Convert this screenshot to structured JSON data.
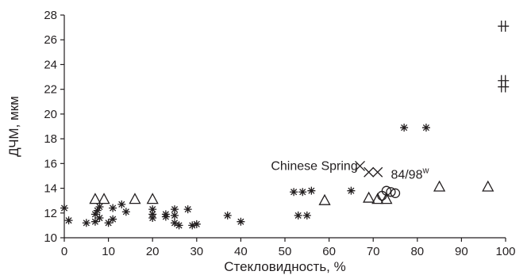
{
  "chart_data": {
    "type": "scatter",
    "xlabel": "Стекловидность, %",
    "ylabel": "ДЧМ, мкм",
    "xlim": [
      0,
      100
    ],
    "ylim": [
      10,
      28
    ],
    "xticks": [
      "0",
      "10",
      "20",
      "30",
      "40",
      "50",
      "60",
      "70",
      "80",
      "90",
      "100"
    ],
    "yticks": [
      "10",
      "12",
      "14",
      "16",
      "18",
      "20",
      "22",
      "24",
      "26",
      "28"
    ],
    "grid": false,
    "series": [
      {
        "marker": "asterisk",
        "points": [
          [
            0,
            12.4
          ],
          [
            1,
            11.4
          ],
          [
            5,
            11.2
          ],
          [
            7,
            11.3
          ],
          [
            7,
            11.9
          ],
          [
            7.5,
            12.2
          ],
          [
            8,
            11.6
          ],
          [
            8,
            12.5
          ],
          [
            10,
            11.2
          ],
          [
            11,
            11.5
          ],
          [
            11,
            12.4
          ],
          [
            13,
            12.7
          ],
          [
            14,
            12.1
          ],
          [
            20,
            11.6
          ],
          [
            20,
            11.9
          ],
          [
            20,
            12.3
          ],
          [
            23,
            11.7
          ],
          [
            23,
            11.9
          ],
          [
            25,
            11.2
          ],
          [
            25,
            11.8
          ],
          [
            25,
            12.3
          ],
          [
            26,
            11.0
          ],
          [
            28,
            12.3
          ],
          [
            29,
            11.0
          ],
          [
            30,
            11.1
          ],
          [
            37,
            11.8
          ],
          [
            40,
            11.3
          ],
          [
            52,
            13.7
          ],
          [
            53,
            11.8
          ],
          [
            54,
            13.7
          ],
          [
            55,
            11.8
          ],
          [
            56,
            13.8
          ],
          [
            65,
            13.8
          ],
          [
            77,
            18.9
          ],
          [
            82,
            18.9
          ]
        ]
      },
      {
        "marker": "triangle",
        "points": [
          [
            7,
            13.1
          ],
          [
            9,
            13.1
          ],
          [
            16,
            13.1
          ],
          [
            20,
            13.1
          ],
          [
            59,
            13.0
          ],
          [
            69,
            13.2
          ],
          [
            71,
            13.1
          ],
          [
            73,
            13.1
          ],
          [
            85,
            14.1
          ],
          [
            96,
            14.1
          ]
        ]
      },
      {
        "marker": "cross",
        "points": [
          [
            67,
            15.8
          ],
          [
            69,
            15.3
          ],
          [
            71,
            15.3
          ]
        ]
      },
      {
        "marker": "circle",
        "points": [
          [
            72,
            13.4
          ],
          [
            73,
            13.8
          ],
          [
            74,
            13.7
          ],
          [
            75,
            13.6
          ]
        ]
      },
      {
        "marker": "double-plus",
        "points": [
          [
            99.5,
            27.1
          ],
          [
            99.5,
            22.7
          ],
          [
            99.5,
            22.2
          ]
        ]
      }
    ],
    "annotations": [
      {
        "text": "Chinese Spring",
        "x": 66.5,
        "y": 15.8
      },
      {
        "text": "84/98",
        "superscript": "w",
        "x": 74,
        "y": 15.1
      }
    ]
  }
}
